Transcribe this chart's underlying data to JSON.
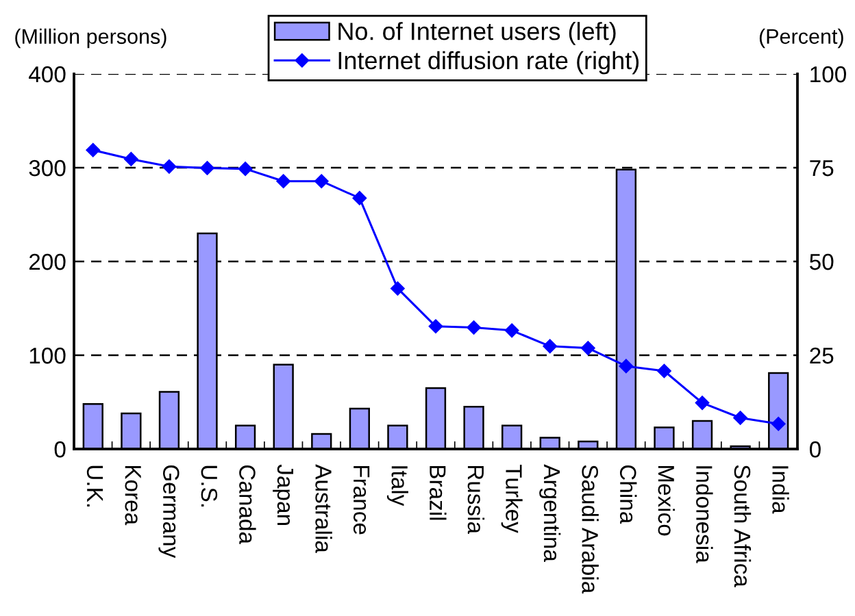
{
  "chart_data": {
    "type": "bar",
    "categories": [
      "U.K.",
      "Korea",
      "Germany",
      "U.S.",
      "Canada",
      "Japan",
      "Australia",
      "France",
      "Italy",
      "Brazil",
      "Russia",
      "Turkey",
      "Argentina",
      "Saudi Arabia",
      "China",
      "Mexico",
      "Indonesia",
      "South Africa",
      "India"
    ],
    "series": [
      {
        "name": "No. of Internet users (left)",
        "color": "#9999ff",
        "values": [
          48,
          38,
          61,
          230,
          25,
          90,
          16,
          43,
          25,
          65,
          45,
          25,
          12,
          8,
          298,
          23,
          30,
          3,
          81
        ]
      },
      {
        "name": "Internet diffusion rate (right)",
        "type": "line",
        "axis": "y2",
        "color": "#0000ff",
        "marker": "diamond",
        "line_style": "solid",
        "values": [
          79.7,
          77.3,
          75.3,
          74.9,
          74.7,
          71.4,
          71.4,
          66.9,
          42.8,
          32.7,
          32.4,
          31.6,
          27.4,
          26.9,
          22.1,
          20.8,
          12.3,
          8.3,
          6.7
        ]
      }
    ],
    "ylabel": "(Million persons)",
    "y2label": "(Percent)",
    "ylim": [
      0,
      400
    ],
    "yticks": [
      0,
      100,
      200,
      300,
      400
    ],
    "y2lim": [
      0,
      100
    ],
    "y2ticks": [
      0,
      25,
      50,
      75,
      100
    ],
    "grid": "y",
    "legend": "top"
  }
}
